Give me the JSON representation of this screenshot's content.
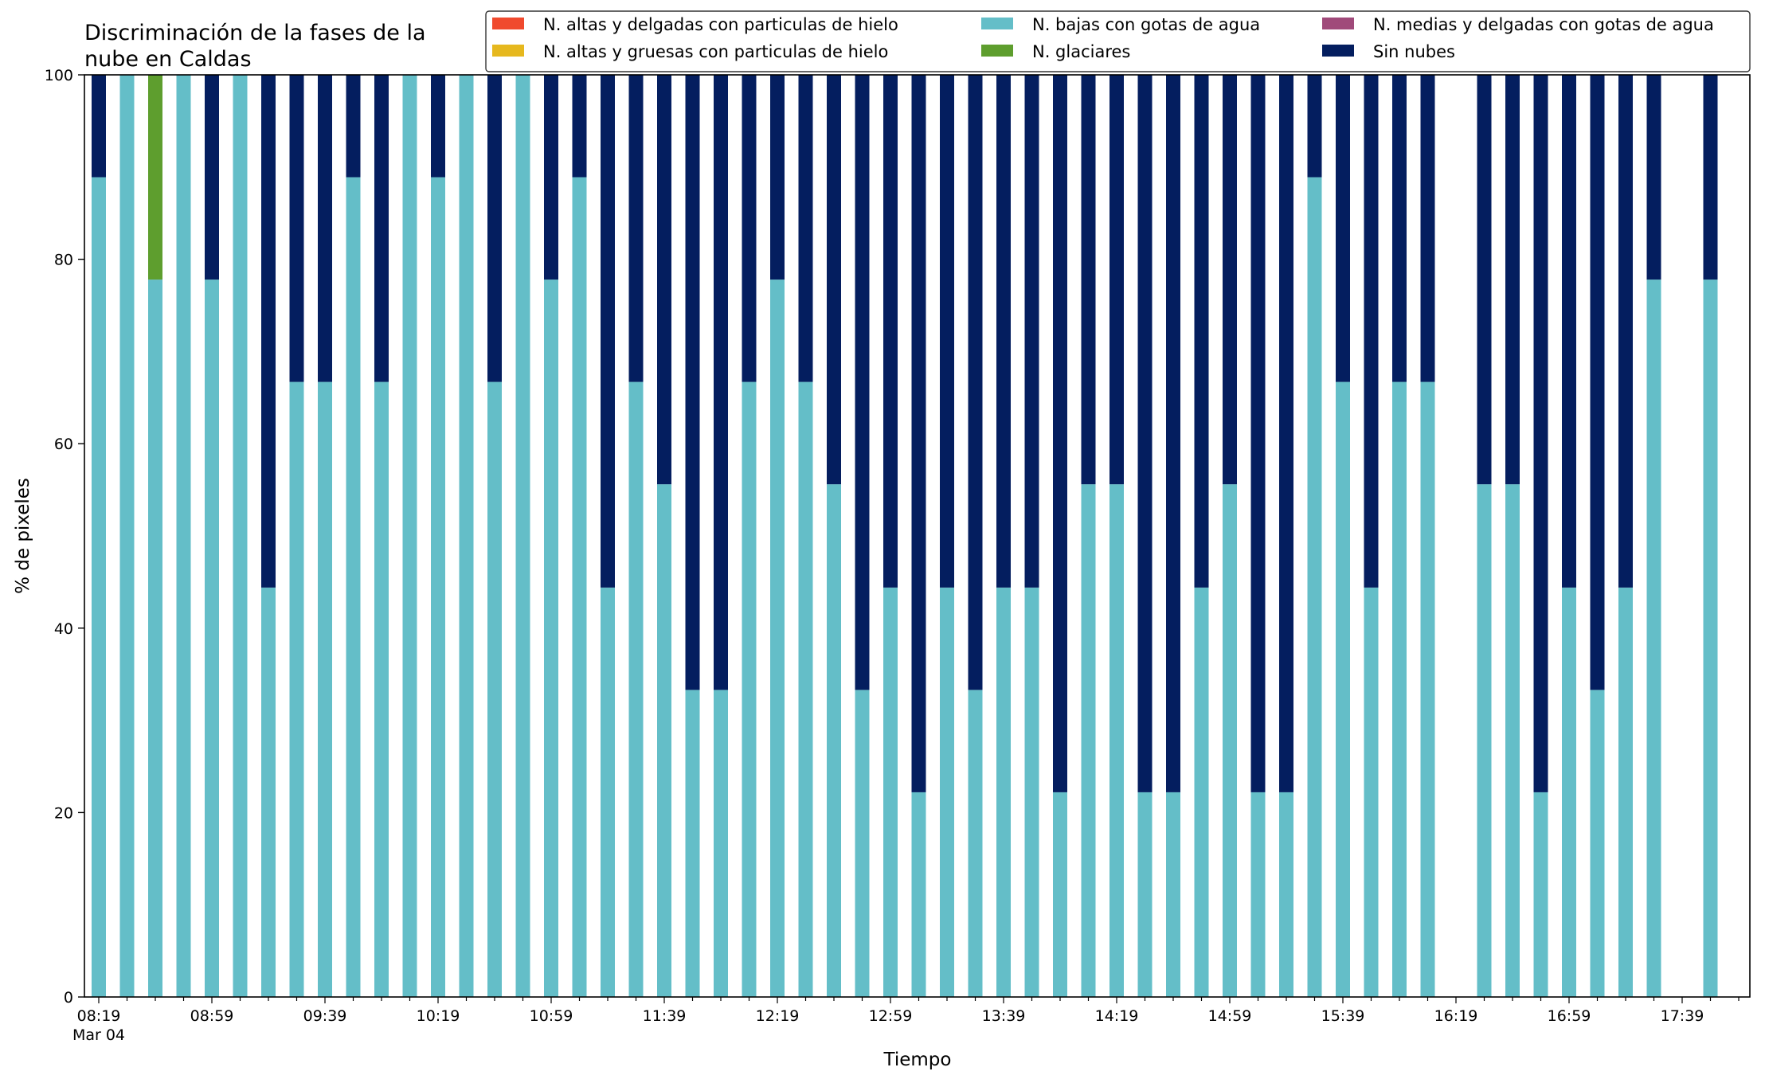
{
  "chart_data": {
    "type": "bar",
    "stacked": true,
    "title": "Discriminación de la fases de la\nnube en Caldas",
    "xlabel": "Tiempo",
    "ylabel": "% de pixeles",
    "ylim": [
      0,
      100
    ],
    "yticks": [
      0,
      20,
      40,
      60,
      80,
      100
    ],
    "xtick_labels": [
      "08:19",
      "08:59",
      "09:39",
      "10:19",
      "10:59",
      "11:39",
      "12:19",
      "12:59",
      "13:39",
      "14:19",
      "14:59",
      "15:39",
      "16:19",
      "16:59",
      "17:39"
    ],
    "xtick_sublabel": "Mar 04",
    "x_start": "08:19",
    "x_interval_minutes": 10,
    "slots": 59,
    "grid": false,
    "legend_position": "top-right",
    "categories": [
      "08:19",
      "08:29",
      "08:39",
      "08:49",
      "08:59",
      "09:09",
      "09:19",
      "09:29",
      "09:39",
      "09:49",
      "09:59",
      "10:09",
      "10:19",
      "10:29",
      "10:39",
      "10:49",
      "10:59",
      "11:09",
      "11:19",
      "11:29",
      "11:39",
      "11:49",
      "11:59",
      "12:09",
      "12:19",
      "12:29",
      "12:39",
      "12:49",
      "12:59",
      "13:09",
      "13:19",
      "13:29",
      "13:39",
      "13:49",
      "13:59",
      "14:09",
      "14:19",
      "14:29",
      "14:39",
      "14:49",
      "14:59",
      "15:09",
      "15:19",
      "15:29",
      "15:39",
      "15:49",
      "15:59",
      "16:09",
      "16:29",
      "16:39",
      "16:49",
      "16:59",
      "17:09",
      "17:19",
      "17:29",
      "17:49"
    ],
    "series": [
      {
        "name": "N. altas y delgadas con particulas de hielo",
        "color": "#f04a2e",
        "values": [
          0,
          0,
          0,
          0,
          0,
          0,
          0,
          0,
          0,
          0,
          0,
          0,
          0,
          0,
          0,
          0,
          0,
          0,
          0,
          0,
          0,
          0,
          0,
          0,
          0,
          0,
          0,
          0,
          0,
          0,
          0,
          0,
          0,
          0,
          0,
          0,
          0,
          0,
          0,
          0,
          0,
          0,
          0,
          0,
          0,
          0,
          0,
          0,
          0,
          0,
          0,
          0,
          0,
          0,
          0,
          0
        ]
      },
      {
        "name": "N. altas y gruesas con particulas de hielo",
        "color": "#e6b81e",
        "values": [
          0,
          0,
          0,
          0,
          0,
          0,
          0,
          0,
          0,
          0,
          0,
          0,
          0,
          0,
          0,
          0,
          0,
          0,
          0,
          0,
          0,
          0,
          0,
          0,
          0,
          0,
          0,
          0,
          0,
          0,
          0,
          0,
          0,
          0,
          0,
          0,
          0,
          0,
          0,
          0,
          0,
          0,
          0,
          0,
          0,
          0,
          0,
          0,
          0,
          0,
          0,
          0,
          0,
          0,
          0,
          0
        ]
      },
      {
        "name": "N. bajas con gotas de agua",
        "color": "#64bec8",
        "values": [
          88.9,
          100,
          77.8,
          100,
          77.8,
          100,
          44.4,
          66.7,
          66.7,
          88.9,
          66.7,
          100,
          88.9,
          100,
          66.7,
          100,
          77.8,
          88.9,
          44.4,
          66.7,
          55.6,
          33.3,
          33.3,
          66.7,
          77.8,
          66.7,
          55.6,
          33.3,
          44.4,
          22.2,
          44.4,
          33.3,
          44.4,
          44.4,
          22.2,
          55.6,
          55.6,
          22.2,
          22.2,
          44.4,
          55.6,
          22.2,
          22.2,
          88.9,
          66.7,
          44.4,
          66.7,
          66.7,
          55.6,
          55.6,
          22.2,
          44.4,
          33.3,
          44.4,
          77.8,
          77.8
        ]
      },
      {
        "name": "N. glaciares",
        "color": "#5e9e2e",
        "values": [
          0,
          0,
          22.2,
          0,
          0,
          0,
          0,
          0,
          0,
          0,
          0,
          0,
          0,
          0,
          0,
          0,
          0,
          0,
          0,
          0,
          0,
          0,
          0,
          0,
          0,
          0,
          0,
          0,
          0,
          0,
          0,
          0,
          0,
          0,
          0,
          0,
          0,
          0,
          0,
          0,
          0,
          0,
          0,
          0,
          0,
          0,
          0,
          0,
          0,
          0,
          0,
          0,
          0,
          0,
          0,
          0
        ]
      },
      {
        "name": "N. medias y delgadas con gotas de agua",
        "color": "#a04a7a",
        "values": [
          0,
          0,
          0,
          0,
          0,
          0,
          0,
          0,
          0,
          0,
          0,
          0,
          0,
          0,
          0,
          0,
          0,
          0,
          0,
          0,
          0,
          0,
          0,
          0,
          0,
          0,
          0,
          0,
          0,
          0,
          0,
          0,
          0,
          0,
          0,
          0,
          0,
          0,
          0,
          0,
          0,
          0,
          0,
          0,
          0,
          0,
          0,
          0,
          0,
          0,
          0,
          0,
          0,
          0,
          0,
          0
        ]
      },
      {
        "name": "Sin nubes",
        "color": "#041e5f",
        "values": [
          11.1,
          0,
          0,
          0,
          22.2,
          0,
          55.6,
          33.3,
          33.3,
          11.1,
          33.3,
          0,
          11.1,
          0,
          33.3,
          0,
          22.2,
          11.1,
          55.6,
          33.3,
          44.4,
          66.7,
          66.7,
          33.3,
          22.2,
          33.3,
          44.4,
          66.7,
          55.6,
          77.8,
          55.6,
          66.7,
          55.6,
          55.6,
          77.8,
          44.4,
          44.4,
          77.8,
          77.8,
          55.6,
          44.4,
          77.8,
          77.8,
          11.1,
          33.3,
          55.6,
          33.3,
          33.3,
          44.4,
          44.4,
          77.8,
          55.6,
          66.7,
          55.6,
          22.2,
          22.2
        ]
      }
    ]
  }
}
